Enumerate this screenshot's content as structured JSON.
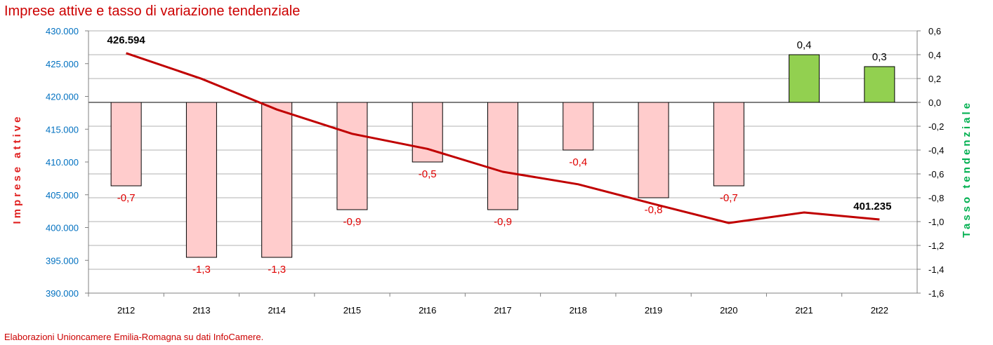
{
  "chart_data": {
    "type": "bar+line",
    "title": "Imprese attive e tasso di variazione tendenziale",
    "categories": [
      "2t12",
      "2t13",
      "2t14",
      "2t15",
      "2t16",
      "2t17",
      "2t18",
      "2t19",
      "2t20",
      "2t21",
      "2t22"
    ],
    "line_series": {
      "name": "Imprese attive",
      "values": [
        426594,
        422700,
        418000,
        414300,
        412000,
        408500,
        406600,
        403600,
        400700,
        402300,
        401235
      ],
      "labels": [
        {
          "index": 0,
          "text": "426.594"
        },
        {
          "index": 10,
          "text": "401.235"
        }
      ]
    },
    "bar_series": {
      "name": "Tasso tendenziale",
      "values": [
        -0.7,
        -1.3,
        -1.3,
        -0.9,
        -0.5,
        -0.9,
        -0.4,
        -0.8,
        -0.7,
        0.4,
        0.3
      ],
      "labels": [
        "-0,7",
        "-1,3",
        "-1,3",
        "-0,9",
        "-0,5",
        "-0,9",
        "-0,4",
        "-0,8",
        "-0,7",
        "0,4",
        "0,3"
      ]
    },
    "y_left": {
      "label": "Imprese attive",
      "range": [
        390000,
        430000
      ],
      "ticks": [
        {
          "value": 430000,
          "label": "430.000"
        },
        {
          "value": 425000,
          "label": "425.000"
        },
        {
          "value": 420000,
          "label": "420.000"
        },
        {
          "value": 415000,
          "label": "415.000"
        },
        {
          "value": 410000,
          "label": "410.000"
        },
        {
          "value": 405000,
          "label": "405.000"
        },
        {
          "value": 400000,
          "label": "400.000"
        },
        {
          "value": 395000,
          "label": "395.000"
        },
        {
          "value": 390000,
          "label": "390.000"
        }
      ]
    },
    "y_right": {
      "label": "Tasso tendenziale",
      "range": [
        -1.6,
        0.6
      ],
      "ticks": [
        {
          "value": 0.6,
          "label": "0,6"
        },
        {
          "value": 0.4,
          "label": "0,4"
        },
        {
          "value": 0.2,
          "label": "0,2"
        },
        {
          "value": 0.0,
          "label": "0,0"
        },
        {
          "value": -0.2,
          "label": "-0,2"
        },
        {
          "value": -0.4,
          "label": "-0,4"
        },
        {
          "value": -0.6,
          "label": "-0,6"
        },
        {
          "value": -0.8,
          "label": "-0,8"
        },
        {
          "value": -1.0,
          "label": "-1,0"
        },
        {
          "value": -1.2,
          "label": "-1,2"
        },
        {
          "value": -1.4,
          "label": "-1,4"
        },
        {
          "value": -1.6,
          "label": "-1,6"
        }
      ]
    },
    "grid": true,
    "source": "Elaborazioni Unioncamere Emilia-Romagna su dati InfoCamere."
  },
  "colors": {
    "title": "#cc0000",
    "line": "#c00000",
    "bar_negative": "#ffcccc",
    "bar_positive": "#92d050",
    "bar_border": "#000000",
    "left_tick": "#0070c0",
    "right_tick": "#000000",
    "left_axis_title": "#e02020",
    "right_axis_title": "#00b050",
    "negative_label": "#e00000",
    "positive_label": "#000000",
    "grid": "#b0b0b0",
    "source_text": "#cc0000"
  }
}
